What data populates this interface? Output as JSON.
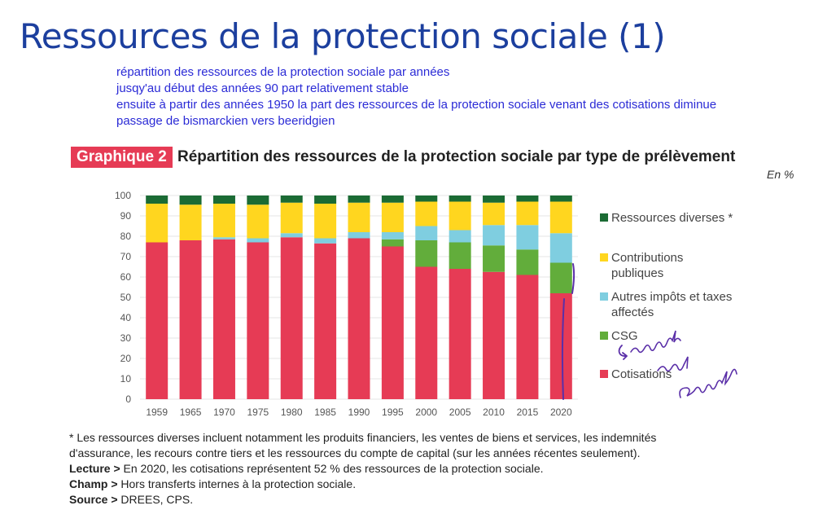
{
  "slide": {
    "title": "Ressources de la protection sociale (1)",
    "notes": [
      "répartition des ressources de la protection sociale par années",
      "jusqy'au début des années 90 part relativement stable",
      "ensuite à partir des années 1950 la part des ressources de la protection sociale venant des cotisations diminue",
      "passage de bismarckien vers beeridgien"
    ]
  },
  "figure": {
    "badge": "Graphique 2",
    "title": "Répartition des ressources de la protection sociale par type de prélèvement",
    "unit": "En %"
  },
  "chart_data": {
    "type": "bar",
    "stacked": true,
    "categories": [
      "1959",
      "1965",
      "1970",
      "1975",
      "1980",
      "1985",
      "1990",
      "1995",
      "2000",
      "2005",
      "2010",
      "2015",
      "2020"
    ],
    "ylim": [
      0,
      100
    ],
    "yticks": [
      0,
      10,
      20,
      30,
      40,
      50,
      60,
      70,
      80,
      90,
      100
    ],
    "legend_position": "right",
    "series": [
      {
        "name": "Cotisations",
        "color": "#e63b55",
        "values": [
          77,
          78,
          78.5,
          77,
          79.5,
          76.5,
          79,
          75,
          65,
          64,
          62.5,
          61,
          52
        ]
      },
      {
        "name": "CSG",
        "color": "#62ad3b",
        "values": [
          0,
          0,
          0,
          0,
          0,
          0,
          0,
          3.5,
          13,
          13,
          13,
          12.5,
          15
        ]
      },
      {
        "name": "Autres impôts et taxes affectés",
        "color": "#7fcee0",
        "values": [
          0,
          0,
          1,
          2,
          2,
          2.5,
          3,
          3.5,
          7,
          6,
          10,
          12,
          14.5
        ]
      },
      {
        "name": "Contributions publiques",
        "color": "#ffd61f",
        "values": [
          19,
          17.5,
          16.5,
          16.5,
          15,
          17,
          14.5,
          14.5,
          12,
          14,
          11,
          11.5,
          15.5
        ]
      },
      {
        "name": "Ressources diverses *",
        "color": "#1b6b34",
        "values": [
          4,
          4.5,
          4,
          4.5,
          3.5,
          4,
          3.5,
          3.5,
          3,
          3,
          3.5,
          3,
          3
        ]
      }
    ],
    "legend": [
      {
        "label": "Ressources diverses *",
        "color": "#1b6b34"
      },
      {
        "label": "Contributions publiques",
        "color": "#ffd61f"
      },
      {
        "label": "Autres impôts et taxes affectés",
        "color": "#7fcee0"
      },
      {
        "label": "CSG",
        "color": "#62ad3b"
      },
      {
        "label": "Cotisations",
        "color": "#e63b55"
      }
    ]
  },
  "footnotes": {
    "note": "* Les ressources diverses incluent notamment les produits financiers, les ventes de biens et services, les indemnités",
    "note2": "d'assurance, les recours contre tiers et les ressources du compte de capital (sur les années récentes seulement).",
    "lecture_label": "Lecture >",
    "lecture": " En 2020, les cotisations représentent 52 % des ressources de la protection sociale.",
    "champ_label": "Champ >",
    "champ": " Hors transferts internes à la protection sociale.",
    "source_label": "Source >",
    "source": " DREES, CPS."
  },
  "annotation": {
    "ink_color": "#5a2fa8"
  }
}
